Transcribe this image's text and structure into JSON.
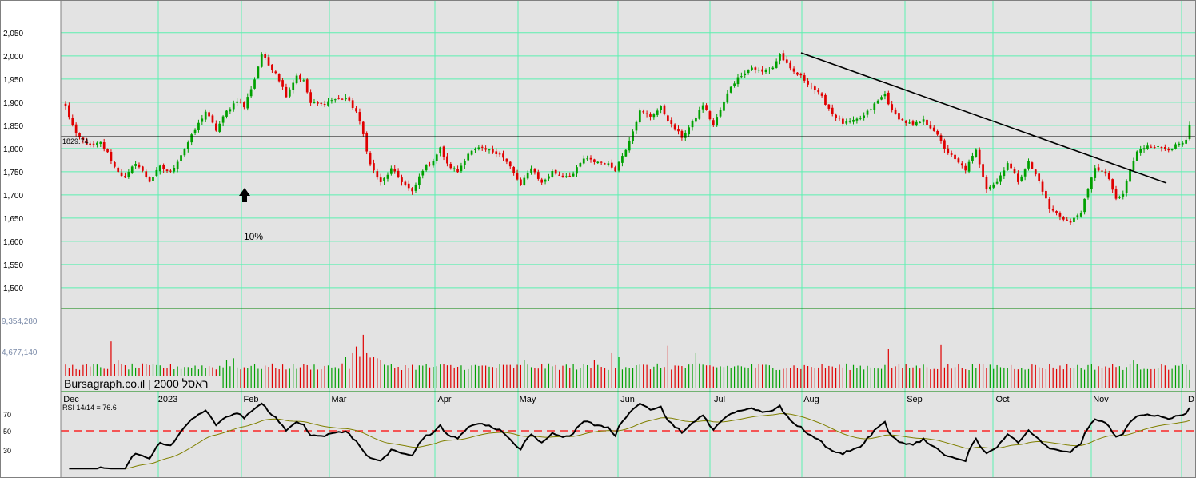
{
  "chart_data": {
    "type": "candlestick",
    "price_axis": {
      "ticks": [
        1500,
        1550,
        1600,
        1650,
        1700,
        1750,
        1800,
        1850,
        1900,
        1950,
        2000,
        2050
      ],
      "tick_labels": [
        "1,500",
        "1,550",
        "1,600",
        "1,650",
        "1,700",
        "1,750",
        "1,800",
        "1,850",
        "1,900",
        "1,950",
        "2,000",
        "2,050"
      ],
      "ylim": [
        1455,
        2110
      ]
    },
    "time_axis": {
      "month_labels": [
        "Dec",
        "2023",
        "Feb",
        "Mar",
        "Apr",
        "May",
        "Jun",
        "Jul",
        "Aug",
        "Sep",
        "Oct",
        "Nov",
        "D"
      ]
    },
    "reference_line": {
      "value": 1829.74,
      "label": "1829.74"
    },
    "trendline": {
      "start": {
        "month": "Jul",
        "price": 2005
      },
      "end": {
        "month": "Nov",
        "price": 1735
      }
    },
    "annotation": {
      "arrow": "up",
      "text": "10%"
    },
    "volume": {
      "tick_labels": [
        "9,354,280",
        "4,677,140"
      ],
      "max": 9354280,
      "mid": 4677140
    },
    "rsi": {
      "label": "RSI 14/14 = 76.6",
      "levels": [
        "70",
        "50",
        "30"
      ],
      "colors": {
        "rsi": "#000000",
        "signal": "#808000",
        "midline": "#ff0000"
      }
    },
    "anchors": [
      {
        "i": 0,
        "p": 1890
      },
      {
        "i": 3,
        "p": 1830
      },
      {
        "i": 7,
        "p": 1805
      },
      {
        "i": 10,
        "p": 1812
      },
      {
        "i": 12,
        "p": 1790
      },
      {
        "i": 14,
        "p": 1760
      },
      {
        "i": 17,
        "p": 1735
      },
      {
        "i": 20,
        "p": 1770
      },
      {
        "i": 24,
        "p": 1730
      },
      {
        "i": 27,
        "p": 1760
      },
      {
        "i": 30,
        "p": 1748
      },
      {
        "i": 34,
        "p": 1800
      },
      {
        "i": 37,
        "p": 1840
      },
      {
        "i": 40,
        "p": 1880
      },
      {
        "i": 43,
        "p": 1840
      },
      {
        "i": 46,
        "p": 1880
      },
      {
        "i": 49,
        "p": 1905
      },
      {
        "i": 51,
        "p": 1890
      },
      {
        "i": 54,
        "p": 1950
      },
      {
        "i": 56,
        "p": 2005
      },
      {
        "i": 58,
        "p": 1980
      },
      {
        "i": 60,
        "p": 1965
      },
      {
        "i": 63,
        "p": 1915
      },
      {
        "i": 66,
        "p": 1958
      },
      {
        "i": 68,
        "p": 1945
      },
      {
        "i": 70,
        "p": 1898
      },
      {
        "i": 73,
        "p": 1895
      },
      {
        "i": 76,
        "p": 1905
      },
      {
        "i": 80,
        "p": 1910
      },
      {
        "i": 83,
        "p": 1880
      },
      {
        "i": 85,
        "p": 1830
      },
      {
        "i": 87,
        "p": 1765
      },
      {
        "i": 90,
        "p": 1725
      },
      {
        "i": 93,
        "p": 1755
      },
      {
        "i": 96,
        "p": 1730
      },
      {
        "i": 99,
        "p": 1705
      },
      {
        "i": 102,
        "p": 1755
      },
      {
        "i": 105,
        "p": 1775
      },
      {
        "i": 107,
        "p": 1800
      },
      {
        "i": 109,
        "p": 1765
      },
      {
        "i": 112,
        "p": 1750
      },
      {
        "i": 115,
        "p": 1790
      },
      {
        "i": 118,
        "p": 1800
      },
      {
        "i": 121,
        "p": 1795
      },
      {
        "i": 124,
        "p": 1790
      },
      {
        "i": 127,
        "p": 1760
      },
      {
        "i": 130,
        "p": 1720
      },
      {
        "i": 133,
        "p": 1760
      },
      {
        "i": 136,
        "p": 1725
      },
      {
        "i": 139,
        "p": 1750
      },
      {
        "i": 142,
        "p": 1740
      },
      {
        "i": 145,
        "p": 1745
      },
      {
        "i": 148,
        "p": 1778
      },
      {
        "i": 151,
        "p": 1772
      },
      {
        "i": 154,
        "p": 1770
      },
      {
        "i": 157,
        "p": 1755
      },
      {
        "i": 160,
        "p": 1800
      },
      {
        "i": 162,
        "p": 1840
      },
      {
        "i": 164,
        "p": 1880
      },
      {
        "i": 167,
        "p": 1870
      },
      {
        "i": 170,
        "p": 1888
      },
      {
        "i": 173,
        "p": 1850
      },
      {
        "i": 176,
        "p": 1825
      },
      {
        "i": 179,
        "p": 1855
      },
      {
        "i": 182,
        "p": 1895
      },
      {
        "i": 185,
        "p": 1850
      },
      {
        "i": 188,
        "p": 1900
      },
      {
        "i": 190,
        "p": 1935
      },
      {
        "i": 193,
        "p": 1960
      },
      {
        "i": 196,
        "p": 1975
      },
      {
        "i": 199,
        "p": 1965
      },
      {
        "i": 202,
        "p": 1975
      },
      {
        "i": 204,
        "p": 2003
      },
      {
        "i": 207,
        "p": 1970
      },
      {
        "i": 210,
        "p": 1955
      },
      {
        "i": 213,
        "p": 1935
      },
      {
        "i": 216,
        "p": 1910
      },
      {
        "i": 219,
        "p": 1875
      },
      {
        "i": 222,
        "p": 1855
      },
      {
        "i": 225,
        "p": 1858
      },
      {
        "i": 228,
        "p": 1870
      },
      {
        "i": 231,
        "p": 1895
      },
      {
        "i": 234,
        "p": 1918
      },
      {
        "i": 236,
        "p": 1880
      },
      {
        "i": 239,
        "p": 1860
      },
      {
        "i": 242,
        "p": 1850
      },
      {
        "i": 245,
        "p": 1860
      },
      {
        "i": 248,
        "p": 1840
      },
      {
        "i": 251,
        "p": 1800
      },
      {
        "i": 254,
        "p": 1775
      },
      {
        "i": 257,
        "p": 1755
      },
      {
        "i": 260,
        "p": 1795
      },
      {
        "i": 263,
        "p": 1715
      },
      {
        "i": 266,
        "p": 1728
      },
      {
        "i": 269,
        "p": 1770
      },
      {
        "i": 272,
        "p": 1730
      },
      {
        "i": 275,
        "p": 1770
      },
      {
        "i": 278,
        "p": 1730
      },
      {
        "i": 281,
        "p": 1670
      },
      {
        "i": 284,
        "p": 1655
      },
      {
        "i": 287,
        "p": 1640
      },
      {
        "i": 290,
        "p": 1665
      },
      {
        "i": 292,
        "p": 1710
      },
      {
        "i": 294,
        "p": 1760
      },
      {
        "i": 296,
        "p": 1750
      },
      {
        "i": 298,
        "p": 1735
      },
      {
        "i": 300,
        "p": 1688
      },
      {
        "i": 302,
        "p": 1702
      },
      {
        "i": 304,
        "p": 1755
      },
      {
        "i": 306,
        "p": 1792
      },
      {
        "i": 309,
        "p": 1808
      },
      {
        "i": 312,
        "p": 1802
      },
      {
        "i": 315,
        "p": 1800
      },
      {
        "i": 318,
        "p": 1808
      },
      {
        "i": 320,
        "p": 1815
      },
      {
        "i": 321,
        "p": 1850
      }
    ],
    "volume_spikes": [
      {
        "i": 13,
        "v": 6400000
      },
      {
        "i": 15,
        "v": 3800000
      },
      {
        "i": 46,
        "v": 3900000
      },
      {
        "i": 48,
        "v": 4100000
      },
      {
        "i": 80,
        "v": 4300000
      },
      {
        "i": 82,
        "v": 4900000
      },
      {
        "i": 83,
        "v": 5700000
      },
      {
        "i": 84,
        "v": 4400000
      },
      {
        "i": 85,
        "v": 7300000
      },
      {
        "i": 86,
        "v": 4900000
      },
      {
        "i": 87,
        "v": 4200000
      },
      {
        "i": 88,
        "v": 4300000
      },
      {
        "i": 89,
        "v": 4100000
      },
      {
        "i": 90,
        "v": 3900000
      },
      {
        "i": 131,
        "v": 3900000
      },
      {
        "i": 151,
        "v": 3900000
      },
      {
        "i": 156,
        "v": 4900000
      },
      {
        "i": 158,
        "v": 4300000
      },
      {
        "i": 172,
        "v": 5800000
      },
      {
        "i": 180,
        "v": 4900000
      },
      {
        "i": 235,
        "v": 5400000
      },
      {
        "i": 250,
        "v": 6000000
      },
      {
        "i": 305,
        "v": 3800000
      }
    ]
  },
  "footer": {
    "brand": "Bursagraph.co.il | 2000 ראסל"
  },
  "colors": {
    "panel_bg": "#e3e3e3",
    "grid": "#5cf0b0",
    "separator": "#008000",
    "up": "#00a000",
    "down": "#e00000",
    "line": "#000000"
  }
}
